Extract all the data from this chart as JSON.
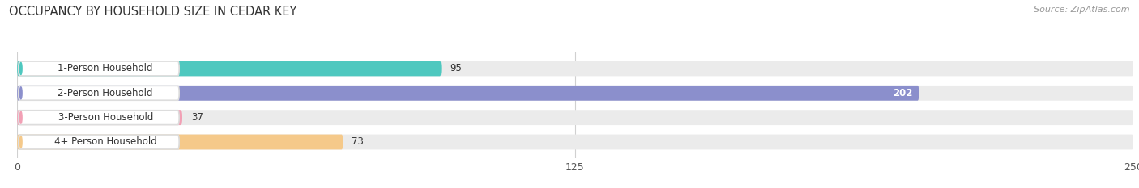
{
  "title": "OCCUPANCY BY HOUSEHOLD SIZE IN CEDAR KEY",
  "source": "Source: ZipAtlas.com",
  "categories": [
    "1-Person Household",
    "2-Person Household",
    "3-Person Household",
    "4+ Person Household"
  ],
  "values": [
    95,
    202,
    37,
    73
  ],
  "bar_colors": [
    "#4ec8bf",
    "#8b8fcc",
    "#f2a0b5",
    "#f5c98a"
  ],
  "label_bg_color": "#ffffff",
  "label_border_colors": [
    "#4ec8bf",
    "#8b8fcc",
    "#f2a0b5",
    "#f5c98a"
  ],
  "bg_bar_color": "#ebebeb",
  "xlim": [
    0,
    250
  ],
  "xticks": [
    0,
    125,
    250
  ],
  "value_label_inside_threshold": 150,
  "title_fontsize": 10.5,
  "source_fontsize": 8,
  "bar_label_fontsize": 8.5,
  "tick_fontsize": 9,
  "bar_height": 0.62,
  "figsize": [
    14.06,
    2.33
  ],
  "dpi": 100
}
